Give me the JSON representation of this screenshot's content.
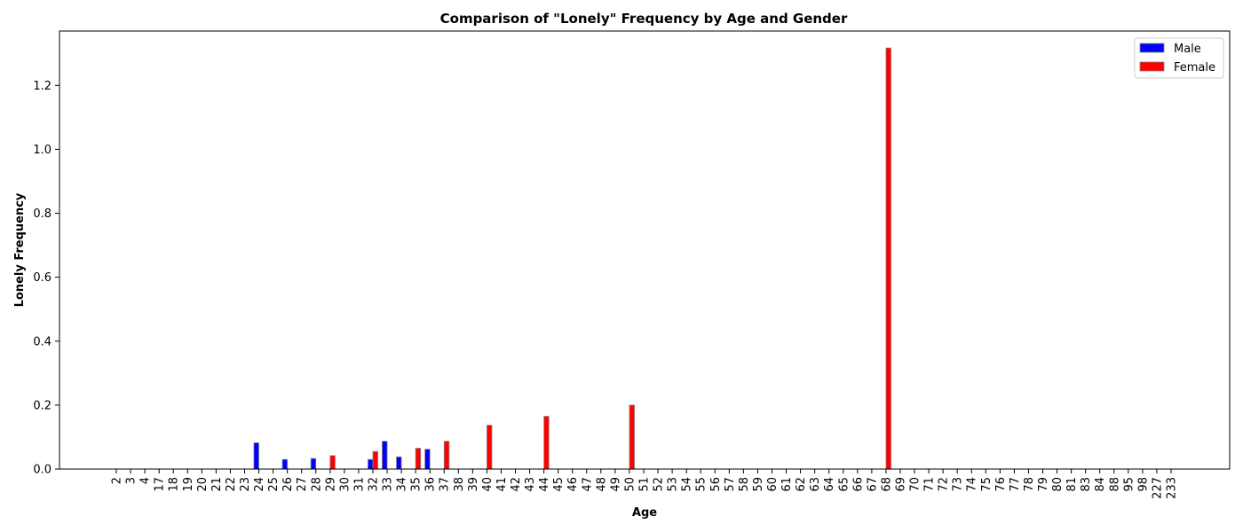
{
  "chart_data": {
    "type": "bar",
    "title": "Comparison of \"Lonely\" Frequency by Age and Gender",
    "xlabel": "Age",
    "ylabel": "Lonely Frequency",
    "ylim": [
      0,
      1.37
    ],
    "yticks": [
      "0.0",
      "0.2",
      "0.4",
      "0.6",
      "0.8",
      "1.0",
      "1.2"
    ],
    "legend_position": "top-right",
    "grid": false,
    "categories": [
      "2",
      "3",
      "4",
      "17",
      "18",
      "19",
      "20",
      "21",
      "22",
      "23",
      "24",
      "25",
      "26",
      "27",
      "28",
      "29",
      "30",
      "31",
      "32",
      "33",
      "34",
      "35",
      "36",
      "37",
      "38",
      "39",
      "40",
      "41",
      "42",
      "43",
      "44",
      "45",
      "46",
      "47",
      "48",
      "49",
      "50",
      "51",
      "52",
      "53",
      "54",
      "55",
      "56",
      "57",
      "58",
      "59",
      "60",
      "61",
      "62",
      "63",
      "64",
      "65",
      "66",
      "67",
      "68",
      "69",
      "70",
      "71",
      "72",
      "73",
      "74",
      "75",
      "76",
      "77",
      "78",
      "79",
      "80",
      "81",
      "83",
      "84",
      "88",
      "95",
      "98",
      "227",
      "233"
    ],
    "series": [
      {
        "name": "Male",
        "color": "#0000ff",
        "values": [
          0,
          0,
          0,
          0,
          0,
          0,
          0,
          0,
          0,
          0,
          0.082,
          0,
          0.03,
          0,
          0.033,
          0,
          0,
          0,
          0.03,
          0.087,
          0.038,
          0,
          0.062,
          0,
          0,
          0,
          0,
          0,
          0,
          0,
          0,
          0,
          0,
          0,
          0,
          0,
          0,
          0,
          0,
          0,
          0,
          0,
          0,
          0,
          0,
          0,
          0,
          0,
          0,
          0,
          0,
          0,
          0,
          0,
          0,
          0,
          0,
          0,
          0,
          0,
          0,
          0,
          0,
          0,
          0,
          0,
          0,
          0,
          0,
          0,
          0,
          0,
          0,
          0,
          0
        ]
      },
      {
        "name": "Female",
        "color": "#ff0000",
        "values": [
          0,
          0,
          0,
          0,
          0,
          0,
          0,
          0,
          0,
          0,
          0,
          0,
          0,
          0,
          0,
          0.042,
          0,
          0,
          0.055,
          0,
          0,
          0.065,
          0,
          0.087,
          0,
          0,
          0.137,
          0,
          0,
          0,
          0.165,
          0,
          0,
          0,
          0,
          0,
          0.2,
          0,
          0,
          0,
          0,
          0,
          0,
          0,
          0,
          0,
          0,
          0,
          0,
          0,
          0,
          0,
          0,
          0,
          1.317,
          0,
          0,
          0,
          0,
          0,
          0,
          0,
          0,
          0,
          0,
          0,
          0,
          0,
          0,
          0,
          0,
          0,
          0,
          0,
          0
        ]
      }
    ]
  }
}
